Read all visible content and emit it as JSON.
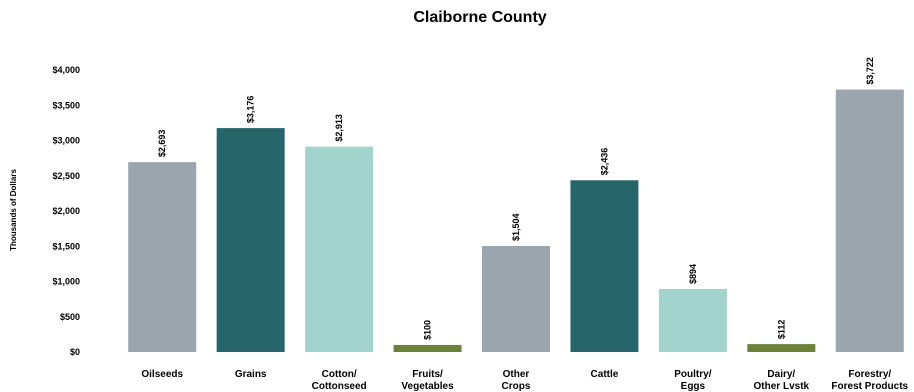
{
  "chart_data": {
    "type": "bar",
    "title": "Claiborne County",
    "ylabel": "Thousands of Dollars",
    "xlabel": "",
    "ylim": [
      0,
      4000
    ],
    "yticks": [
      "$0",
      "$500",
      "$1,000",
      "$1,500",
      "$2,000",
      "$2,500",
      "$3,000",
      "$3,500",
      "$4,000"
    ],
    "grid": false,
    "legend": "none",
    "categories": [
      [
        "Oilseeds"
      ],
      [
        "Grains"
      ],
      [
        "Cotton/",
        "Cottonseed"
      ],
      [
        "Fruits/",
        "Vegetables"
      ],
      [
        "Other",
        "Crops"
      ],
      [
        "Cattle"
      ],
      [
        "Poultry/",
        "Eggs"
      ],
      [
        "Dairy/",
        "Other Lvstk"
      ],
      [
        "Forestry/",
        "Forest Products"
      ]
    ],
    "values": [
      2693,
      3176,
      2913,
      100,
      1504,
      2436,
      894,
      112,
      3722
    ],
    "data_labels": [
      "$2,693",
      "$3,176",
      "$2,913",
      "$100",
      "$1,504",
      "$2,436",
      "$894",
      "$112",
      "$3,722"
    ],
    "colors": [
      "#9aa5ae",
      "#26666a",
      "#a2d3cc",
      "#6b8238",
      "#9aa5ae",
      "#26666a",
      "#a2d3cc",
      "#6b8238",
      "#9aa5ae"
    ]
  }
}
